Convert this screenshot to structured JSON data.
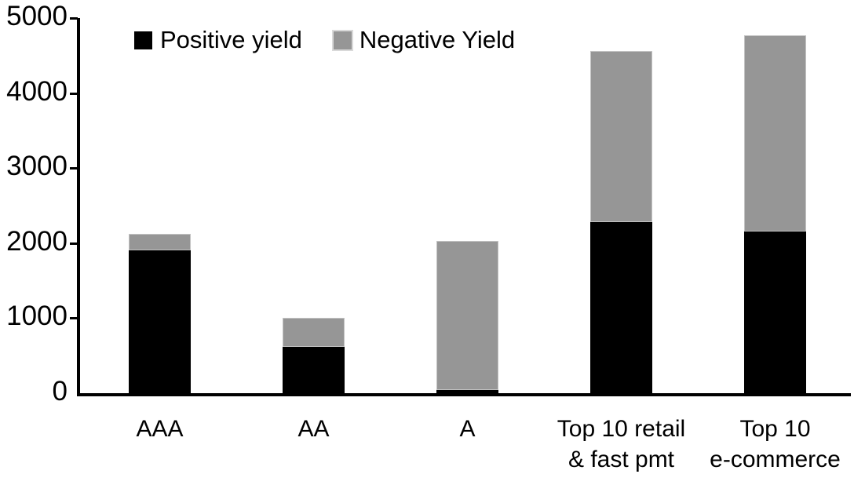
{
  "chart_data": {
    "type": "bar",
    "stacked": true,
    "categories": [
      "AAA",
      "AA",
      "A",
      "Top 10 retail\n& fast pmt",
      "Top 10\ne-commerce"
    ],
    "series": [
      {
        "name": "Positive yield",
        "color": "#000000",
        "values": [
          1900,
          620,
          40,
          2280,
          2150
        ]
      },
      {
        "name": "Negative Yield",
        "color": "#969696",
        "values": [
          220,
          380,
          1990,
          2280,
          2620
        ]
      }
    ],
    "ylim": [
      0,
      5000
    ],
    "yticks": [
      0,
      1000,
      2000,
      3000,
      4000,
      5000
    ],
    "legend_position": "top",
    "grid": false,
    "axis_color": "#000000",
    "background_color": "#ffffff"
  }
}
